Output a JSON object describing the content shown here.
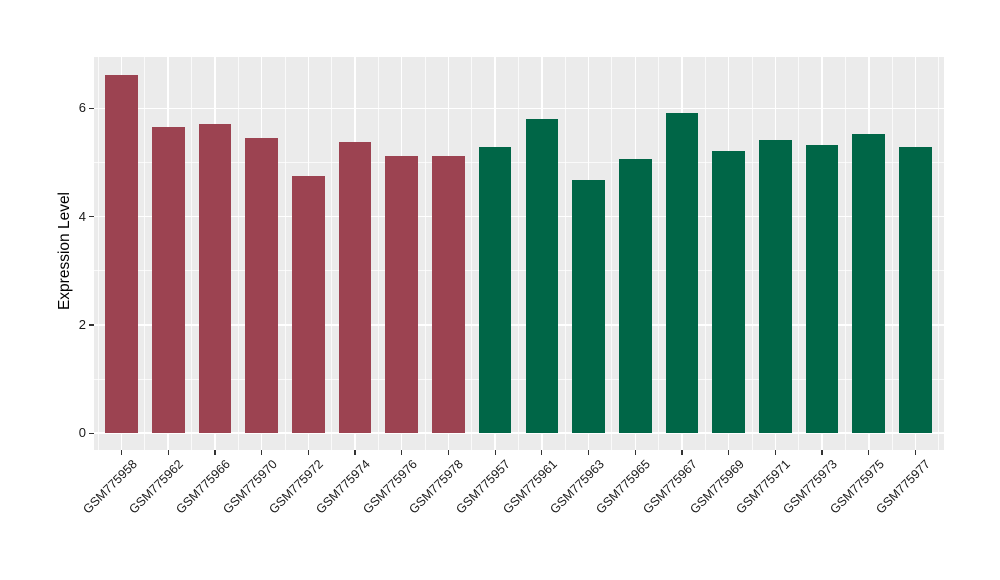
{
  "chart_data": {
    "type": "bar",
    "title": "",
    "ylabel": "Expression Level",
    "xlabel": "",
    "ylim": [
      -0.31,
      6.95
    ],
    "yticks": [
      0,
      2,
      4,
      6
    ],
    "yminorticks": [
      1,
      3,
      5
    ],
    "grid": "on",
    "legend_position": "none",
    "categories": [
      "GSM775958",
      "GSM775962",
      "GSM775966",
      "GSM775970",
      "GSM775972",
      "GSM775974",
      "GSM775976",
      "GSM775978",
      "GSM775957",
      "GSM775961",
      "GSM775963",
      "GSM775965",
      "GSM775967",
      "GSM775969",
      "GSM775971",
      "GSM775973",
      "GSM775975",
      "GSM775977"
    ],
    "values": [
      6.62,
      5.65,
      5.72,
      5.45,
      4.76,
      5.38,
      5.12,
      5.12,
      5.29,
      5.81,
      4.67,
      5.06,
      5.92,
      5.21,
      5.41,
      5.33,
      5.53,
      5.28
    ],
    "groups": [
      "group1",
      "group1",
      "group1",
      "group1",
      "group1",
      "group1",
      "group1",
      "group1",
      "group2",
      "group2",
      "group2",
      "group2",
      "group2",
      "group2",
      "group2",
      "group2",
      "group2",
      "group2"
    ],
    "group_colors": {
      "group1": "#9C4351",
      "group2": "#006647"
    },
    "colors": {
      "panel_background": "#EBEBEB",
      "gridline": "#FFFFFF",
      "tick_mark": "#333333",
      "tick_label": "#1A1A1A",
      "axis_title": "#000000"
    }
  }
}
